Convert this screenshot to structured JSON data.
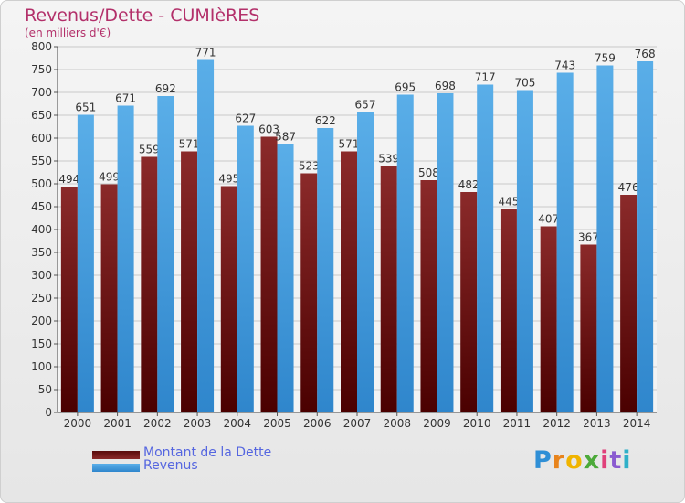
{
  "title": "Revenus/Dette - CUMIèRES",
  "subtitle": "(en milliers d'€)",
  "logo": {
    "text": "Proxiti"
  },
  "chart_data": {
    "type": "bar",
    "categories": [
      "2000",
      "2001",
      "2002",
      "2003",
      "2004",
      "2005",
      "2006",
      "2007",
      "2008",
      "2009",
      "2010",
      "2011",
      "2012",
      "2013",
      "2014"
    ],
    "series": [
      {
        "name": "Montant de la Dette",
        "color": "#7a1c1c",
        "values": [
          494,
          499,
          559,
          571,
          495,
          603,
          523,
          571,
          539,
          508,
          482,
          445,
          407,
          367,
          476
        ]
      },
      {
        "name": "Revenus",
        "color": "#4aa3e0",
        "values": [
          651,
          671,
          692,
          771,
          627,
          587,
          622,
          657,
          695,
          698,
          717,
          705,
          743,
          759,
          768
        ]
      }
    ],
    "ylim": [
      0,
      800
    ],
    "yticks": [
      0,
      50,
      100,
      150,
      200,
      250,
      300,
      350,
      400,
      450,
      500,
      550,
      600,
      650,
      700,
      750,
      800
    ],
    "grid": true,
    "legend_position": "bottom-left"
  }
}
